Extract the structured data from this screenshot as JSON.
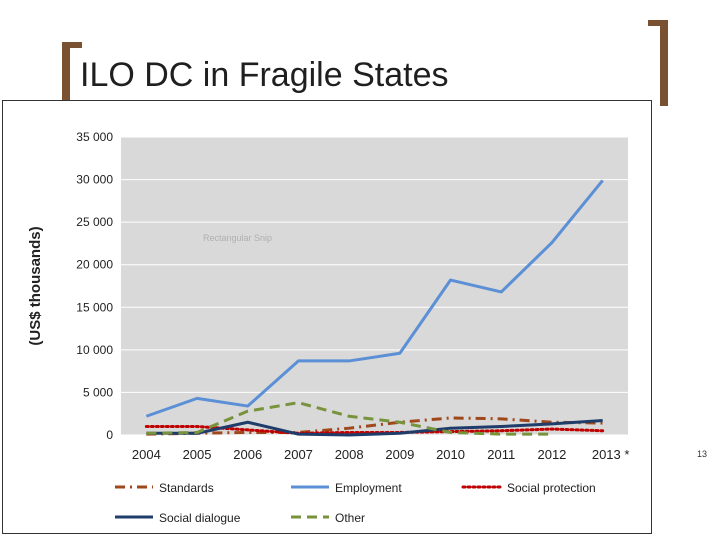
{
  "slide": {
    "title": "ILO DC in Fragile States",
    "page_number": "13"
  },
  "colors": {
    "bracket": "#7a5232",
    "plot_bg": "#d9d9d9"
  },
  "chart_data": {
    "type": "line",
    "title": "",
    "xlabel": "",
    "ylabel": "(US$ thousands)",
    "categories": [
      "2004",
      "2005",
      "2006",
      "2007",
      "2008",
      "2009",
      "2010",
      "2011",
      "2012",
      "2013 *"
    ],
    "ylim": [
      0,
      35000
    ],
    "yticks": [
      0,
      5000,
      10000,
      15000,
      20000,
      25000,
      30000,
      35000
    ],
    "ytick_labels": [
      "0",
      "5 000",
      "10 000",
      "15 000",
      "20 000",
      "25 000",
      "30 000",
      "35 000"
    ],
    "faded_annotation": "Rectangular Snip",
    "series": [
      {
        "name": "Standards",
        "color": "#a0471b",
        "dash": "dashdot",
        "values": [
          100,
          200,
          300,
          300,
          800,
          1500,
          2000,
          1900,
          1500,
          1400
        ]
      },
      {
        "name": "Employment",
        "color": "#5b8fd6",
        "dash": "solid",
        "values": [
          2200,
          4300,
          3400,
          8700,
          8700,
          9600,
          18200,
          16800,
          22600,
          29900
        ]
      },
      {
        "name": "Social protection",
        "color": "#c00000",
        "dash": "dotted",
        "values": [
          1000,
          1000,
          600,
          200,
          300,
          300,
          400,
          500,
          700,
          500
        ]
      },
      {
        "name": "Social dialogue",
        "color": "#1f3d6b",
        "dash": "solid",
        "values": [
          200,
          200,
          1500,
          100,
          0,
          200,
          800,
          1000,
          1300,
          1700
        ]
      },
      {
        "name": "Other",
        "color": "#77933c",
        "dash": "dashed",
        "values": [
          200,
          300,
          2800,
          3800,
          2200,
          1500,
          300,
          100,
          100,
          null
        ]
      }
    ]
  }
}
